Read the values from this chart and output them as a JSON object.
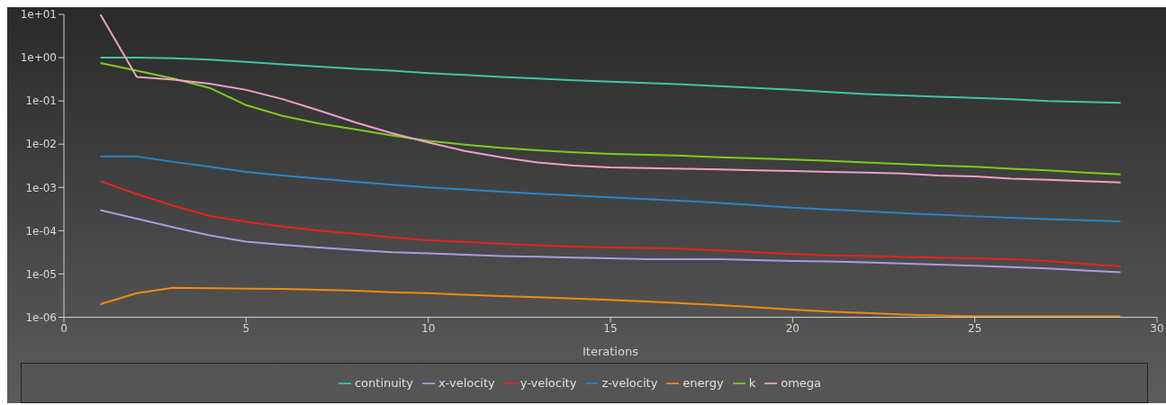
{
  "chart_data": {
    "type": "line",
    "xlabel": "Iterations",
    "x": [
      1,
      2,
      3,
      4,
      5,
      6,
      7,
      8,
      9,
      10,
      11,
      12,
      13,
      14,
      15,
      16,
      17,
      18,
      19,
      20,
      21,
      22,
      23,
      24,
      25,
      26,
      27,
      28,
      29
    ],
    "series": [
      {
        "name": "continuity",
        "color": "#3fc4a8",
        "values": [
          1.0,
          1.0,
          0.97,
          0.9,
          0.8,
          0.7,
          0.62,
          0.55,
          0.5,
          0.44,
          0.4,
          0.36,
          0.33,
          0.3,
          0.28,
          0.26,
          0.24,
          0.22,
          0.2,
          0.18,
          0.16,
          0.145,
          0.135,
          0.125,
          0.118,
          0.11,
          0.1,
          0.095,
          0.09
        ]
      },
      {
        "name": "x-velocity",
        "color": "#a99ce0",
        "values": [
          0.0003,
          0.00019,
          0.00012,
          7.8e-05,
          5.6e-05,
          4.7e-05,
          4.1e-05,
          3.6e-05,
          3.2e-05,
          3e-05,
          2.8e-05,
          2.6e-05,
          2.5e-05,
          2.4e-05,
          2.3e-05,
          2.2e-05,
          2.2e-05,
          2.2e-05,
          2.1e-05,
          2e-05,
          1.95e-05,
          1.85e-05,
          1.75e-05,
          1.65e-05,
          1.55e-05,
          1.45e-05,
          1.35e-05,
          1.2e-05,
          1.1e-05
        ]
      },
      {
        "name": "y-velocity",
        "color": "#e8231e",
        "values": [
          0.0014,
          0.0007,
          0.00038,
          0.00022,
          0.00016,
          0.000125,
          0.0001,
          8.5e-05,
          7e-05,
          6e-05,
          5.5e-05,
          5e-05,
          4.6e-05,
          4.3e-05,
          4.1e-05,
          4e-05,
          3.8e-05,
          3.5e-05,
          3.2e-05,
          2.9e-05,
          2.7e-05,
          2.6e-05,
          2.5e-05,
          2.4e-05,
          2.3e-05,
          2.2e-05,
          2e-05,
          1.7e-05,
          1.5e-05
        ]
      },
      {
        "name": "z-velocity",
        "color": "#2a86c8",
        "values": [
          0.0052,
          0.0052,
          0.0039,
          0.003,
          0.0023,
          0.0019,
          0.0016,
          0.00135,
          0.00115,
          0.001,
          0.0009,
          0.0008,
          0.00072,
          0.00065,
          0.00059,
          0.00054,
          0.00049,
          0.00044,
          0.00039,
          0.00034,
          0.00031,
          0.00028,
          0.000255,
          0.000235,
          0.000215,
          0.0002,
          0.000185,
          0.000175,
          0.000165
        ]
      },
      {
        "name": "energy",
        "color": "#f08a10",
        "values": [
          2e-06,
          3.6e-06,
          4.8e-06,
          4.7e-06,
          4.6e-06,
          4.5e-06,
          4.3e-06,
          4.1e-06,
          3.8e-06,
          3.6e-06,
          3.3e-06,
          3.1e-06,
          2.9e-06,
          2.7e-06,
          2.5e-06,
          2.3e-06,
          2.1e-06,
          1.9e-06,
          1.7e-06,
          1.5e-06,
          1.35e-06,
          1.25e-06,
          1.15e-06,
          1.1e-06,
          1.05e-06,
          1.05e-06,
          1.05e-06,
          1.05e-06,
          1.05e-06
        ]
      },
      {
        "name": "k",
        "color": "#7ccc1a",
        "values": [
          0.75,
          0.5,
          0.33,
          0.2,
          0.08,
          0.045,
          0.03,
          0.022,
          0.016,
          0.012,
          0.0098,
          0.0082,
          0.0072,
          0.0065,
          0.006,
          0.0057,
          0.0054,
          0.005,
          0.0047,
          0.0044,
          0.0041,
          0.0038,
          0.0035,
          0.0032,
          0.003,
          0.0027,
          0.0025,
          0.0022,
          0.002
        ]
      },
      {
        "name": "omega",
        "color": "#f0a0c8",
        "values": [
          10,
          0.36,
          0.31,
          0.25,
          0.18,
          0.11,
          0.06,
          0.032,
          0.018,
          0.011,
          0.007,
          0.005,
          0.0038,
          0.0032,
          0.0029,
          0.0028,
          0.0027,
          0.0026,
          0.0025,
          0.0024,
          0.0023,
          0.0022,
          0.0021,
          0.0019,
          0.0018,
          0.0016,
          0.0015,
          0.0014,
          0.0013
        ]
      }
    ],
    "xlim": [
      0,
      30
    ],
    "xticks": [
      0,
      5,
      10,
      15,
      20,
      25,
      30
    ],
    "ylim": [
      1e-06,
      10
    ],
    "yticks": [
      {
        "value": 1e-06,
        "label": "1e-06"
      },
      {
        "value": 1e-05,
        "label": "1e-05"
      },
      {
        "value": 0.0001,
        "label": "1e-04"
      },
      {
        "value": 0.001,
        "label": "1e-03"
      },
      {
        "value": 0.01,
        "label": "1e-02"
      },
      {
        "value": 0.1,
        "label": "1e-01"
      },
      {
        "value": 1,
        "label": "1e+00"
      },
      {
        "value": 10,
        "label": "1e+01"
      }
    ],
    "log": true,
    "grid": false,
    "legend": "bottom",
    "marker": "none",
    "line_style": "solid"
  }
}
